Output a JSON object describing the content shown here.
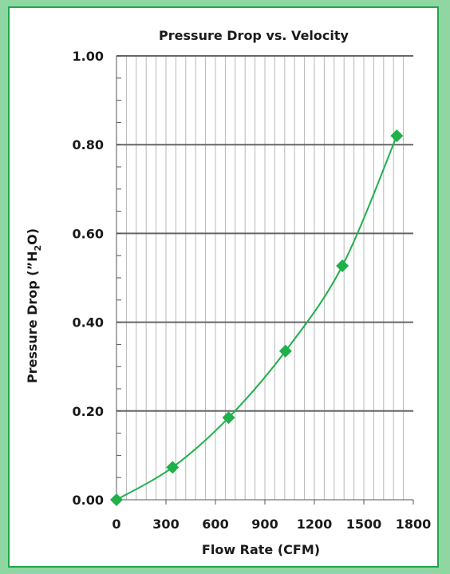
{
  "colors": {
    "page_background": "#8fd6a3",
    "border": "#1fa84b",
    "series": "#1fb04b",
    "major_grid": "#666666",
    "minor_grid": "#b8b8b8"
  },
  "chart_data": {
    "type": "line",
    "title": "Pressure Drop vs. Velocity",
    "xlabel": "Flow Rate (CFM)",
    "ylabel_main": "Pressure Drop (”H",
    "ylabel_sub": "2",
    "ylabel_end": "O)",
    "xlim": [
      0,
      1800
    ],
    "ylim": [
      0,
      1.0
    ],
    "x_ticks": [
      0,
      300,
      600,
      900,
      1200,
      1500,
      1800
    ],
    "x_tick_labels": [
      "0",
      "300",
      "600",
      "900",
      "1200",
      "1500",
      "1800"
    ],
    "y_ticks": [
      0,
      0.2,
      0.4,
      0.6,
      0.8,
      1.0
    ],
    "y_tick_labels": [
      "0.00",
      "0.20",
      "0.40",
      "0.60",
      "0.80",
      "1.00"
    ],
    "grid": true,
    "marker": "diamond",
    "series": [
      {
        "x": [
          0,
          340,
          680,
          1025,
          1370,
          1700
        ],
        "y": [
          0.0,
          0.073,
          0.185,
          0.335,
          0.527,
          0.82
        ]
      }
    ]
  }
}
